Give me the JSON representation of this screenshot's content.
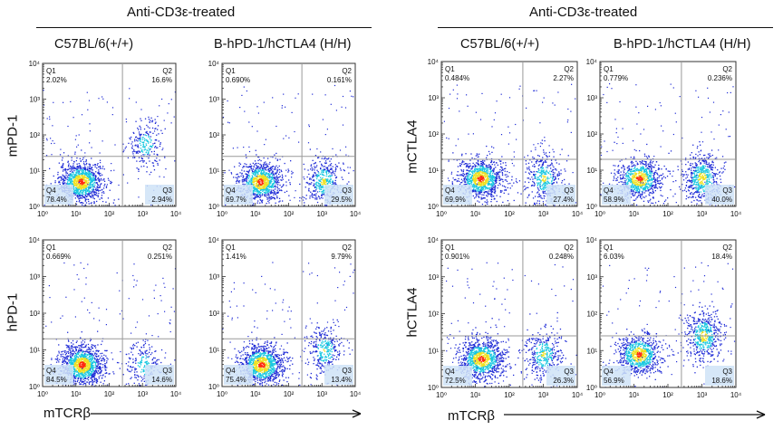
{
  "left_group": {
    "header": "Anti-CD3ε-treated",
    "columns": [
      "C57BL/6(+/+)",
      "B-hPD-1/hCTLA4 (H/H)"
    ],
    "row_ylabels": [
      "mPD-1",
      "hPD-1"
    ],
    "xlabel": "mTCRβ"
  },
  "right_group": {
    "header": "Anti-CD3ε-treated",
    "columns": [
      "C57BL/6(+/+)",
      "B-hPD-1/hCTLA4 (H/H)"
    ],
    "row_ylabels": [
      "mCTLA4",
      "hCTLA4"
    ],
    "xlabel": "mTCRβ"
  },
  "colors": {
    "density_low": "#1f2bd6",
    "density_mid": "#19c8e0",
    "density_high": "#f0e020",
    "density_peak": "#ff2a10",
    "gate_line": "#999999",
    "quadrant_label_bg": "#cfe3f7"
  },
  "chart_data": [
    {
      "type": "scatter",
      "id": "L-r1-c1",
      "xscale": "log",
      "yscale": "log",
      "xlim": [
        1,
        10000
      ],
      "ylim": [
        1,
        10000
      ],
      "xticks": [
        "10⁰",
        "10¹",
        "10²",
        "10³",
        "10⁴"
      ],
      "yticks": [
        "10⁰",
        "10¹",
        "10²",
        "10³",
        "10⁴"
      ],
      "quadrant_gate": {
        "x": 250,
        "y": 25
      },
      "quadrants": [
        {
          "name": "Q1",
          "value": "2.02%"
        },
        {
          "name": "Q2",
          "value": "16.6%"
        },
        {
          "name": "Q3",
          "value": "2.94%"
        },
        {
          "name": "Q4",
          "value": "78.4%"
        }
      ],
      "populations": [
        {
          "x": 14,
          "y": 5,
          "weight": 78.4
        },
        {
          "x": 1200,
          "y": 55,
          "weight": 16.6
        }
      ]
    },
    {
      "type": "scatter",
      "id": "L-r1-c2",
      "xscale": "log",
      "yscale": "log",
      "xlim": [
        1,
        10000
      ],
      "ylim": [
        1,
        10000
      ],
      "xticks": [
        "10⁰",
        "10¹",
        "10²",
        "10³",
        "10⁴"
      ],
      "yticks": [
        "10⁰",
        "10¹",
        "10²",
        "10³",
        "10⁴"
      ],
      "quadrant_gate": {
        "x": 250,
        "y": 25
      },
      "quadrants": [
        {
          "name": "Q1",
          "value": "0.690%"
        },
        {
          "name": "Q2",
          "value": "0.161%"
        },
        {
          "name": "Q3",
          "value": "29.5%"
        },
        {
          "name": "Q4",
          "value": "69.7%"
        }
      ],
      "populations": [
        {
          "x": 14,
          "y": 5,
          "weight": 69.7
        },
        {
          "x": 1100,
          "y": 5,
          "weight": 29.5
        }
      ]
    },
    {
      "type": "scatter",
      "id": "L-r2-c1",
      "xscale": "log",
      "yscale": "log",
      "xlim": [
        1,
        10000
      ],
      "ylim": [
        1,
        10000
      ],
      "xticks": [
        "10⁰",
        "10¹",
        "10²",
        "10³",
        "10⁴"
      ],
      "yticks": [
        "10⁰",
        "10¹",
        "10²",
        "10³",
        "10⁴"
      ],
      "quadrant_gate": {
        "x": 250,
        "y": 20
      },
      "quadrants": [
        {
          "name": "Q1",
          "value": "0.669%"
        },
        {
          "name": "Q2",
          "value": "0.251%"
        },
        {
          "name": "Q3",
          "value": "14.6%"
        },
        {
          "name": "Q4",
          "value": "84.5%"
        }
      ],
      "populations": [
        {
          "x": 15,
          "y": 4,
          "weight": 84.5
        },
        {
          "x": 1100,
          "y": 4,
          "weight": 14.6
        }
      ]
    },
    {
      "type": "scatter",
      "id": "L-r2-c2",
      "xscale": "log",
      "yscale": "log",
      "xlim": [
        1,
        10000
      ],
      "ylim": [
        1,
        10000
      ],
      "xticks": [
        "10⁰",
        "10¹",
        "10²",
        "10³",
        "10⁴"
      ],
      "yticks": [
        "10⁰",
        "10¹",
        "10²",
        "10³",
        "10⁴"
      ],
      "quadrant_gate": {
        "x": 250,
        "y": 20
      },
      "quadrants": [
        {
          "name": "Q1",
          "value": "1.41%"
        },
        {
          "name": "Q2",
          "value": "9.79%"
        },
        {
          "name": "Q3",
          "value": "13.4%"
        },
        {
          "name": "Q4",
          "value": "75.4%"
        }
      ],
      "populations": [
        {
          "x": 15,
          "y": 4,
          "weight": 75.4
        },
        {
          "x": 1200,
          "y": 10,
          "weight": 23.2
        }
      ]
    },
    {
      "type": "scatter",
      "id": "R-r1-c1",
      "xscale": "log",
      "yscale": "log",
      "xlim": [
        1,
        10000
      ],
      "ylim": [
        1,
        10000
      ],
      "xticks": [
        "10⁰",
        "10¹",
        "10²",
        "10³",
        "10⁴"
      ],
      "yticks": [
        "10⁰",
        "10¹",
        "10²",
        "10³",
        "10⁴"
      ],
      "quadrant_gate": {
        "x": 250,
        "y": 20
      },
      "quadrants": [
        {
          "name": "Q1",
          "value": "0.484%"
        },
        {
          "name": "Q2",
          "value": "2.27%"
        },
        {
          "name": "Q3",
          "value": "27.4%"
        },
        {
          "name": "Q4",
          "value": "69.9%"
        }
      ],
      "populations": [
        {
          "x": 14,
          "y": 6,
          "weight": 69.9
        },
        {
          "x": 1000,
          "y": 6,
          "weight": 27.4
        }
      ]
    },
    {
      "type": "scatter",
      "id": "R-r1-c2",
      "xscale": "log",
      "yscale": "log",
      "xlim": [
        1,
        10000
      ],
      "ylim": [
        1,
        10000
      ],
      "xticks": [
        "10⁰",
        "10¹",
        "10²",
        "10³",
        "10⁴"
      ],
      "yticks": [
        "10⁰",
        "10¹",
        "10²",
        "10³",
        "10⁴"
      ],
      "quadrant_gate": {
        "x": 250,
        "y": 20
      },
      "quadrants": [
        {
          "name": "Q1",
          "value": "0.779%"
        },
        {
          "name": "Q2",
          "value": "0.236%"
        },
        {
          "name": "Q3",
          "value": "40.0%"
        },
        {
          "name": "Q4",
          "value": "58.9%"
        }
      ],
      "populations": [
        {
          "x": 14,
          "y": 6,
          "weight": 58.9
        },
        {
          "x": 1000,
          "y": 6,
          "weight": 40.0
        }
      ]
    },
    {
      "type": "scatter",
      "id": "R-r2-c1",
      "xscale": "log",
      "yscale": "log",
      "xlim": [
        1,
        10000
      ],
      "ylim": [
        1,
        10000
      ],
      "xticks": [
        "10⁰",
        "10¹",
        "10²",
        "10³",
        "10⁴"
      ],
      "yticks": [
        "10⁰",
        "10¹",
        "10²",
        "10³",
        "10⁴"
      ],
      "quadrant_gate": {
        "x": 250,
        "y": 25
      },
      "quadrants": [
        {
          "name": "Q1",
          "value": "0.901%"
        },
        {
          "name": "Q2",
          "value": "0.248%"
        },
        {
          "name": "Q3",
          "value": "26.3%"
        },
        {
          "name": "Q4",
          "value": "72.5%"
        }
      ],
      "populations": [
        {
          "x": 15,
          "y": 6,
          "weight": 72.5
        },
        {
          "x": 1000,
          "y": 8,
          "weight": 26.3
        }
      ]
    },
    {
      "type": "scatter",
      "id": "R-r2-c2",
      "xscale": "log",
      "yscale": "log",
      "xlim": [
        1,
        10000
      ],
      "ylim": [
        1,
        10000
      ],
      "xticks": [
        "10⁰",
        "10¹",
        "10²",
        "10³",
        "10⁴"
      ],
      "yticks": [
        "10⁰",
        "10¹",
        "10²",
        "10³",
        "10⁴"
      ],
      "quadrant_gate": {
        "x": 250,
        "y": 25
      },
      "quadrants": [
        {
          "name": "Q1",
          "value": "6.03%"
        },
        {
          "name": "Q2",
          "value": "18.4%"
        },
        {
          "name": "Q3",
          "value": "18.6%"
        },
        {
          "name": "Q4",
          "value": "56.9%"
        }
      ],
      "populations": [
        {
          "x": 14,
          "y": 8,
          "weight": 56.9
        },
        {
          "x": 1100,
          "y": 25,
          "weight": 37.0
        }
      ]
    }
  ]
}
